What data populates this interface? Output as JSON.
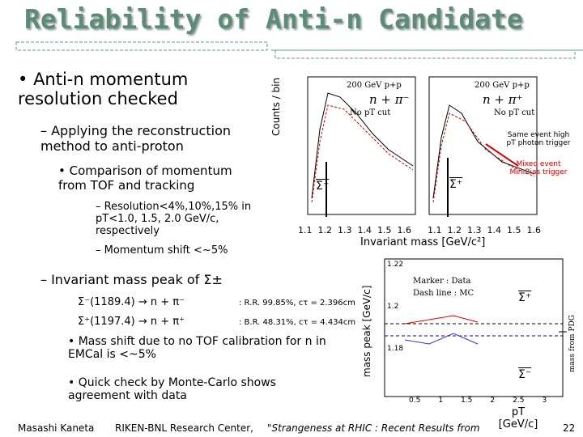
{
  "header": {
    "title": "Reliability of Anti-n Candidate"
  },
  "outline": [
    {
      "level": 1,
      "text": "Anti-n momentum resolution checked"
    },
    {
      "level": 2,
      "text": "– Applying the reconstruction method to anti-proton"
    },
    {
      "level": 3,
      "text": "Comparison of momentum from TOF and tracking"
    },
    {
      "level": 4,
      "text": "– Resolution<4%,10%,15% in pT<1.0, 1.5, 2.0 GeV/c, respectively"
    },
    {
      "level": 4,
      "text": "– Momentum shift <~5%"
    },
    {
      "level": 2,
      "text": "– Invariant mass peak of  Σ±"
    }
  ],
  "decays": [
    {
      "channel": "Σ⁻(1189.4) → n + π⁻",
      "info": ": R.R. 99.85%, cτ = 2.396cm"
    },
    {
      "channel": "Σ⁺(1197.4) → n + π⁺",
      "info": ": B.R. 48.31%, cτ = 4.434cm"
    }
  ],
  "notes": [
    "Mass shift due to no TOF calibration for n in EMCal is <~5%",
    "Quick check by Monte-Carlo shows agreement with data"
  ],
  "plot1": {
    "ylabel": "Counts / bin",
    "xlabel": "Invariant mass [GeV/c²]",
    "left": {
      "energy": "200 GeV p+p",
      "channel": "n + π⁻",
      "cut": "No pT cut",
      "particle": "Σ⁻"
    },
    "right": {
      "energy": "200 GeV p+p",
      "channel": "n + π⁺",
      "cut": "No pT cut",
      "particle": "Σ⁺"
    },
    "legend": [
      "Same event high pT photon trigger",
      "Mixed event Min.Bias trigger"
    ],
    "xticks": [
      "1.1",
      "1.2",
      "1.3",
      "1.4",
      "1.5",
      "1.6"
    ]
  },
  "plot2": {
    "ylabel": "mass peak [GeV/c]",
    "marker": "Marker : Data",
    "dash": "Dash line : MC",
    "plus": "Σ⁺",
    "minus": "Σ⁻",
    "pdg": "mass from PDG",
    "xlabel": "pT [GeV/c]",
    "yticks": [
      "1.22",
      "1.2",
      "1.18"
    ],
    "xticks": [
      "0.5",
      "1",
      "1.5",
      "2",
      "2.5",
      "3"
    ]
  },
  "footer": {
    "author": "Masashi Kaneta",
    "institute": "RIKEN-BNL Research Center,",
    "talk": "\"Strangeness at RHIC : Recent Results from",
    "page": "22"
  }
}
